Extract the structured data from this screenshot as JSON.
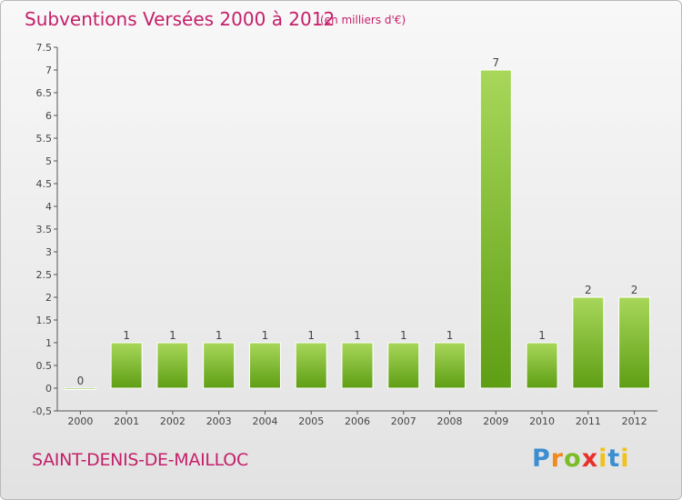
{
  "header": {
    "title": "Subventions Versées 2000 à 2012",
    "subtitle": "(en milliers d'€)"
  },
  "footer": {
    "commune": "SAINT-DENIS-DE-MAILLOC",
    "logo": "Proxiti"
  },
  "colors": {
    "title": "#c4206a",
    "bar_top": "#a8d75a",
    "bar_bottom": "#5e9e14"
  },
  "chart_data": {
    "type": "bar",
    "title": "Subventions Versées 2000 à 2012",
    "subtitle": "(en milliers d'€)",
    "xlabel": "",
    "ylabel": "",
    "categories": [
      "2000",
      "2001",
      "2002",
      "2003",
      "2004",
      "2005",
      "2006",
      "2007",
      "2008",
      "2009",
      "2010",
      "2011",
      "2012"
    ],
    "values": [
      0,
      1,
      1,
      1,
      1,
      1,
      1,
      1,
      1,
      7,
      1,
      2,
      2
    ],
    "value_labels": [
      "0",
      "1",
      "1",
      "1",
      "1",
      "1",
      "1",
      "1",
      "1",
      "7",
      "1",
      "2",
      "2"
    ],
    "ylim": [
      -0.5,
      7.5
    ],
    "yticks": [
      "-0,5",
      "0",
      "0.5",
      "1",
      "1.5",
      "2",
      "2.5",
      "3",
      "3.5",
      "4",
      "4.5",
      "5",
      "5.5",
      "6",
      "6.5",
      "7",
      "7.5"
    ],
    "ytick_values": [
      -0.5,
      0,
      0.5,
      1,
      1.5,
      2,
      2.5,
      3,
      3.5,
      4,
      4.5,
      5,
      5.5,
      6,
      6.5,
      7,
      7.5
    ],
    "grid": false,
    "legend": "none"
  }
}
